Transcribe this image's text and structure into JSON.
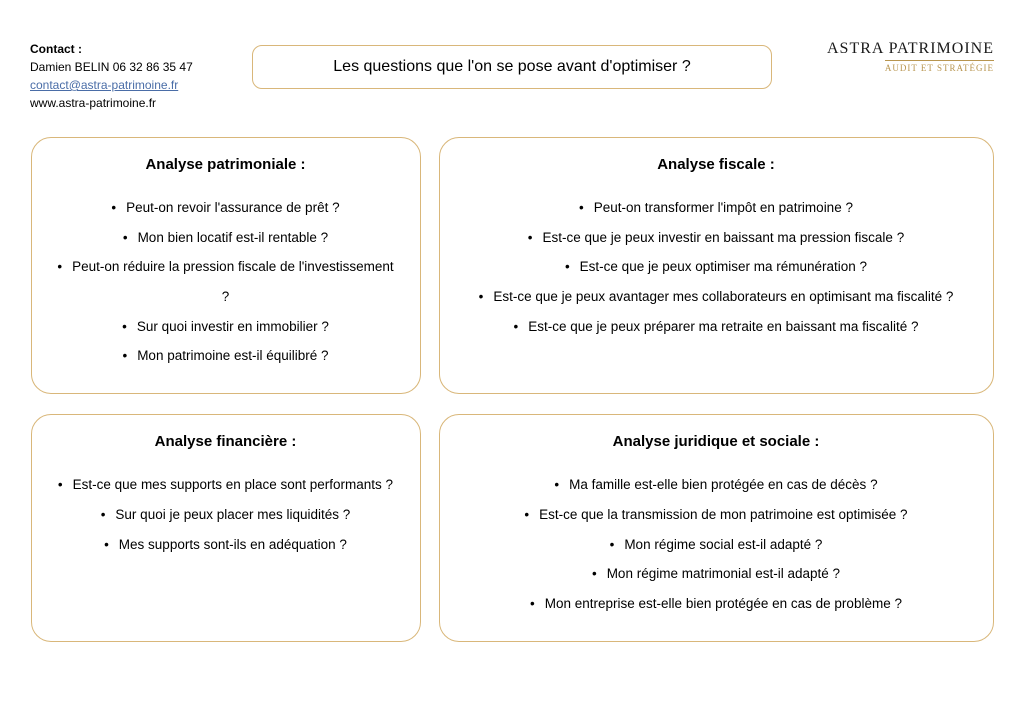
{
  "colors": {
    "border_gold": "#d9b77a",
    "gold_dark": "#b8954f",
    "link": "#4a6da7",
    "text": "#000000",
    "background": "#ffffff"
  },
  "contact": {
    "label": "Contact :",
    "name_phone": "Damien BELIN 06 32 86 35 47",
    "email": "contact@astra-patrimoine.fr",
    "website": "www.astra-patrimoine.fr"
  },
  "title": "Les questions que l'on se pose avant d'optimiser ?",
  "brand": {
    "name": "ASTRA PATRIMOINE",
    "tagline": "AUDIT ET STRATÉGIE"
  },
  "cards": [
    {
      "title": "Analyse patrimoniale :",
      "items": [
        "Peut-on revoir l'assurance de prêt ?",
        "Mon bien locatif est-il rentable ?",
        "Peut-on réduire la pression fiscale de l'investissement ?",
        "Sur quoi investir en immobilier ?",
        "Mon patrimoine est-il équilibré ?"
      ]
    },
    {
      "title": "Analyse fiscale :",
      "items": [
        "Peut-on transformer l'impôt en patrimoine ?",
        "Est-ce que je peux investir en baissant ma pression fiscale ?",
        "Est-ce que je peux optimiser ma rémunération ?",
        "Est-ce que je peux avantager mes collaborateurs en optimisant ma fiscalité ?",
        "Est-ce que  je peux préparer ma retraite en baissant ma fiscalité ?"
      ]
    },
    {
      "title": "Analyse financière :",
      "items": [
        "Est-ce que mes supports en place sont performants ?",
        "Sur quoi je peux placer mes liquidités ?",
        "Mes supports sont-ils en adéquation ?"
      ]
    },
    {
      "title": "Analyse juridique et sociale :",
      "items": [
        "Ma famille est-elle bien protégée en cas de décès ?",
        "Est-ce que la transmission de mon patrimoine est optimisée ?",
        "Mon régime social est-il adapté ?",
        "Mon régime matrimonial est-il adapté ?",
        "Mon entreprise est-elle bien protégée en cas de problème ?"
      ]
    }
  ]
}
